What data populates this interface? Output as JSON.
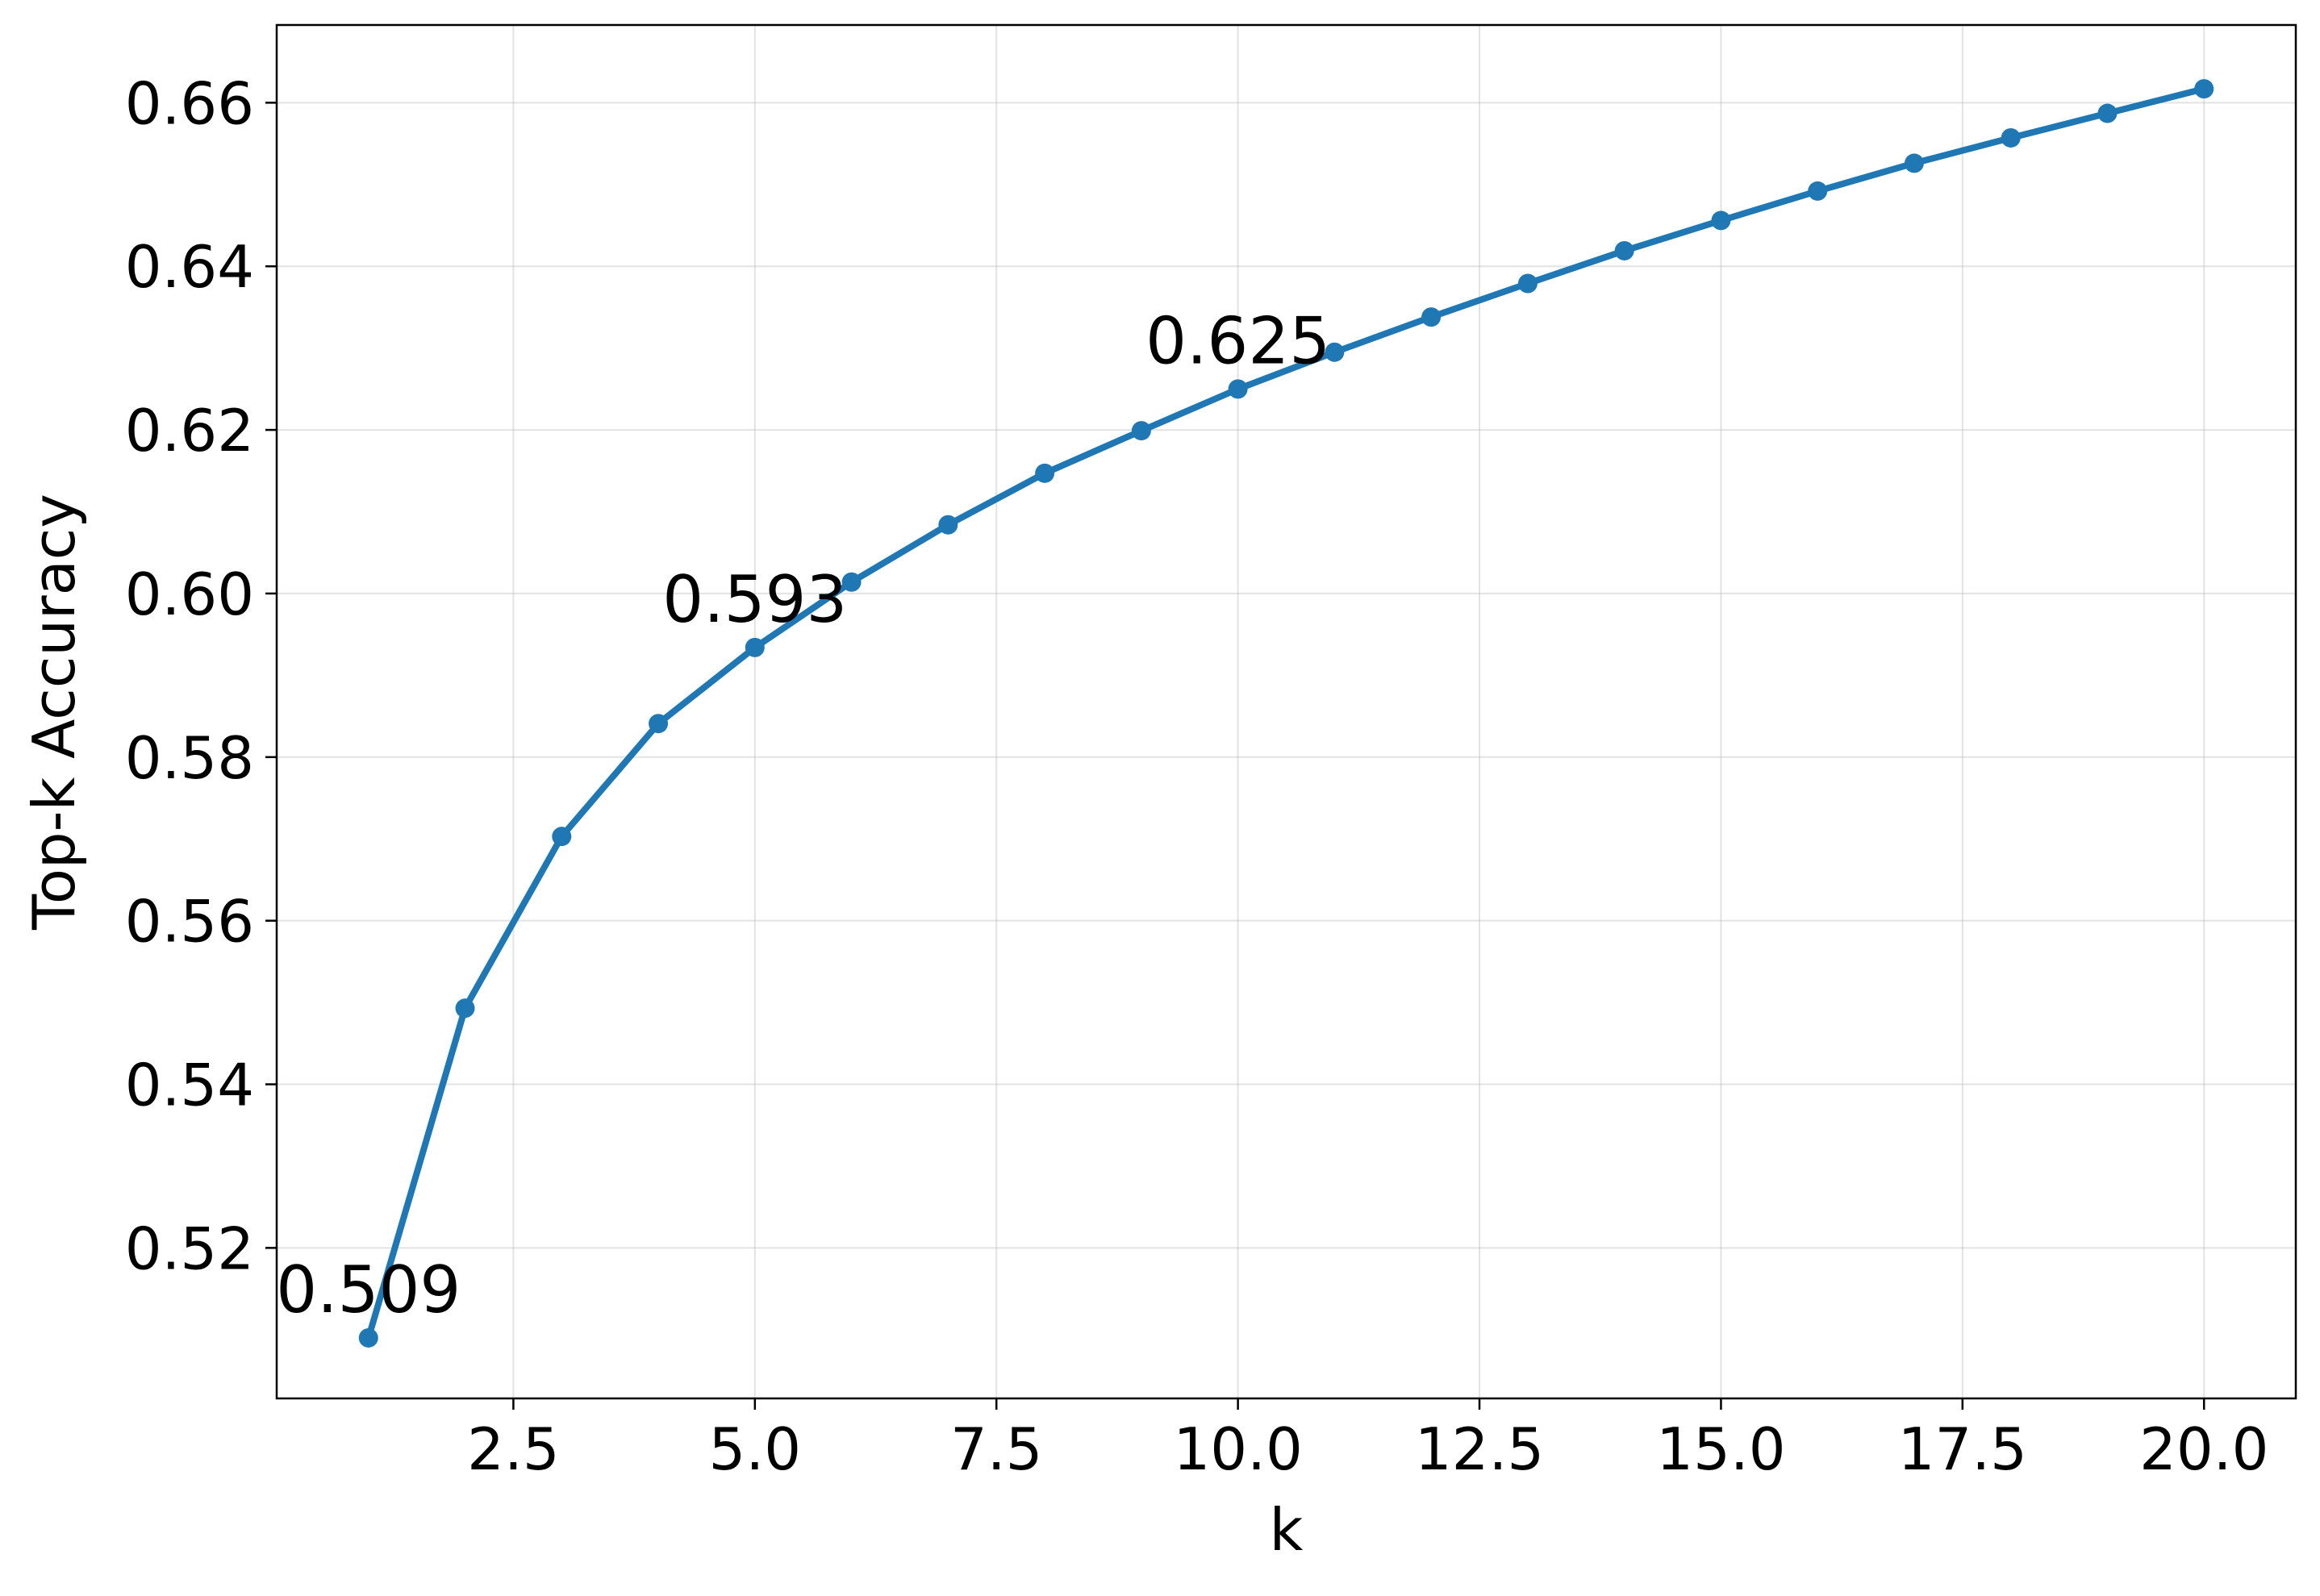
{
  "chart_data": {
    "type": "line",
    "title": "",
    "xlabel": "k",
    "ylabel": "Top-k Accuracy",
    "xlim": [
      0.05,
      20.95
    ],
    "ylim": [
      0.5016,
      0.6695
    ],
    "xticks": [
      2.5,
      5.0,
      7.5,
      10.0,
      12.5,
      15.0,
      17.5,
      20.0
    ],
    "xtick_labels": [
      "2.5",
      "5.0",
      "7.5",
      "10.0",
      "12.5",
      "15.0",
      "17.5",
      "20.0"
    ],
    "yticks": [
      0.52,
      0.54,
      0.56,
      0.58,
      0.6,
      0.62,
      0.64,
      0.66
    ],
    "ytick_labels": [
      "0.52",
      "0.54",
      "0.56",
      "0.58",
      "0.60",
      "0.62",
      "0.64",
      "0.66"
    ],
    "grid": true,
    "legend": "none",
    "series": [
      {
        "color": "#1f77b4",
        "marker": "circle",
        "x": [
          1,
          2,
          3,
          4,
          5,
          6,
          7,
          8,
          9,
          10,
          11,
          12,
          13,
          14,
          15,
          16,
          17,
          18,
          19,
          20
        ],
        "y": [
          0.509,
          0.5493,
          0.5703,
          0.5841,
          0.5934,
          0.6014,
          0.6084,
          0.6147,
          0.6199,
          0.625,
          0.6295,
          0.6338,
          0.6379,
          0.6419,
          0.6456,
          0.6492,
          0.6526,
          0.6557,
          0.6587,
          0.6617
        ]
      }
    ],
    "annotations": [
      {
        "x": 1,
        "y": 0.509,
        "text": "0.509"
      },
      {
        "x": 5,
        "y": 0.5934,
        "text": "0.593"
      },
      {
        "x": 10,
        "y": 0.625,
        "text": "0.625"
      }
    ]
  }
}
